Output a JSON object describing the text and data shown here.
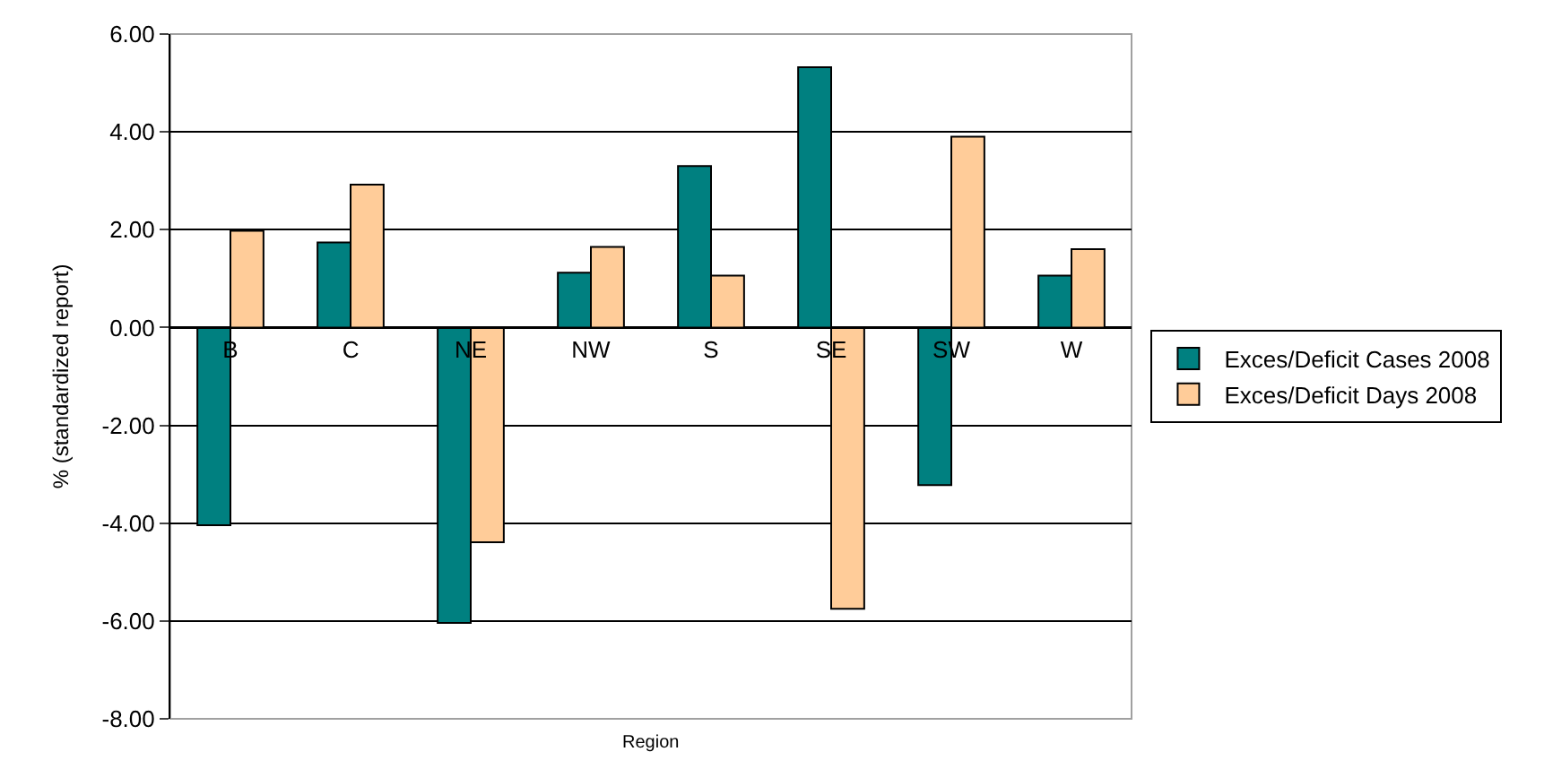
{
  "chart_data": {
    "type": "bar",
    "xlabel": "Region",
    "ylabel": "% (standardized report)",
    "categories": [
      "B",
      "C",
      "NE",
      "NW",
      "S",
      "SE",
      "SW",
      "W"
    ],
    "series": [
      {
        "name": "Exces/Deficit Cases 2008",
        "color": "#008080",
        "values": [
          -4.04,
          1.74,
          -6.04,
          1.12,
          3.3,
          5.32,
          -3.22,
          1.06
        ]
      },
      {
        "name": "Exces/Deficit Days 2008",
        "color": "#ffcc99",
        "values": [
          1.98,
          2.92,
          -4.39,
          1.65,
          1.06,
          -5.75,
          3.9,
          1.6
        ]
      }
    ],
    "ylim": [
      -8,
      6
    ],
    "yticks": [
      {
        "value": -8,
        "label": "-8.00"
      },
      {
        "value": -6,
        "label": "-6.00"
      },
      {
        "value": -4,
        "label": "-4.00"
      },
      {
        "value": -2,
        "label": "-2.00"
      },
      {
        "value": 0,
        "label": "0.00"
      },
      {
        "value": 2,
        "label": "2.00"
      },
      {
        "value": 4,
        "label": "4.00"
      },
      {
        "value": 6,
        "label": "6.00"
      }
    ],
    "grid": "y",
    "legend": "right"
  }
}
